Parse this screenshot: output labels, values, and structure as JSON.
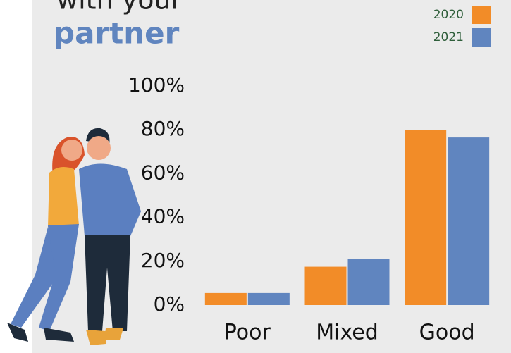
{
  "chart_data": {
    "type": "bar",
    "title": "with your",
    "subtitle": "partner",
    "categories": [
      "Poor",
      "Mixed",
      "Good"
    ],
    "series": [
      {
        "name": "2020",
        "color": "#f28c28",
        "values": [
          5.5,
          17.5,
          80
        ]
      },
      {
        "name": "2021",
        "color": "#6085bf",
        "values": [
          5.5,
          21,
          76.5
        ]
      }
    ],
    "ylim": [
      0,
      100
    ],
    "yticks": [
      {
        "value": 0,
        "label": "0%"
      },
      {
        "value": 20,
        "label": "20%"
      },
      {
        "value": 40,
        "label": "40%"
      },
      {
        "value": 60,
        "label": "60%"
      },
      {
        "value": 80,
        "label": "80%"
      },
      {
        "value": 100,
        "label": "100%"
      }
    ],
    "legend": "top-right"
  }
}
